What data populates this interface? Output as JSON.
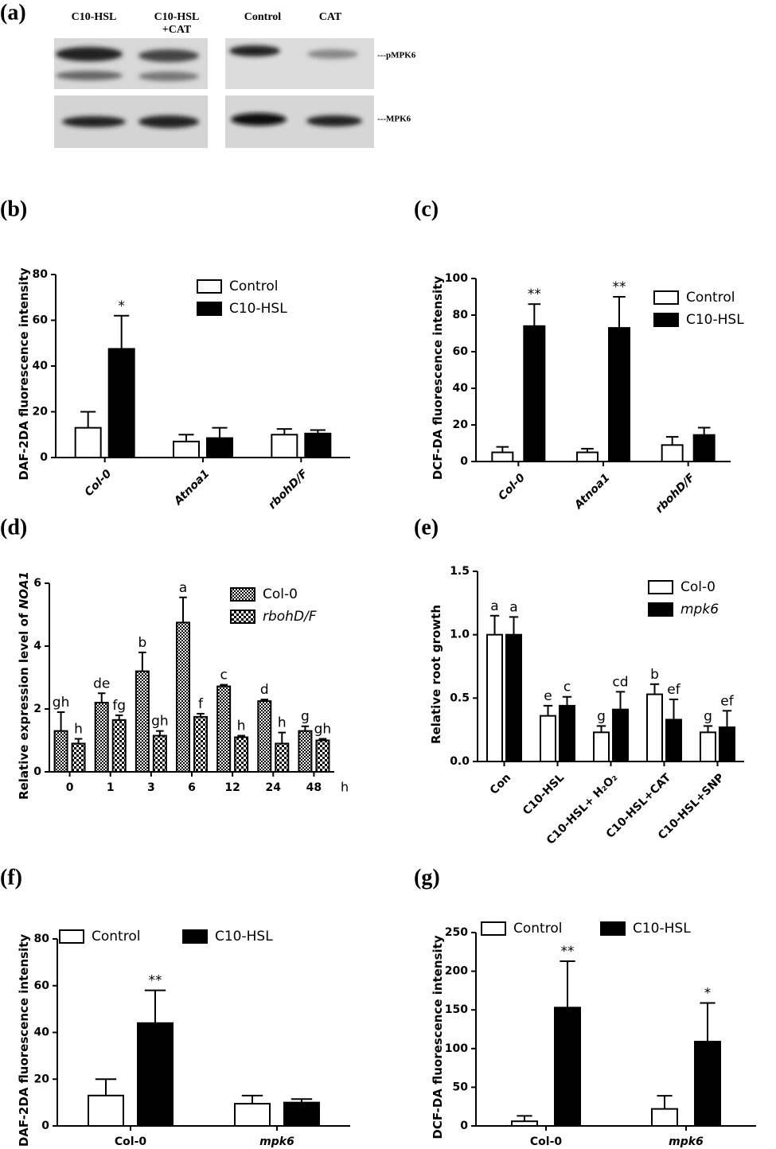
{
  "blot": {
    "label": "(a)",
    "lanes": [
      [
        "C10-HSL"
      ],
      [
        "C10-HSL",
        "+CAT"
      ],
      [
        "Control"
      ],
      [
        "CAT"
      ]
    ],
    "bands": [
      "---pMPK6",
      "---MPK6"
    ]
  },
  "chart_data": [
    {
      "type": "bar",
      "label": "(b)",
      "ylabel": [
        "DAF-2DA fluorescence intensity"
      ],
      "categories": [
        "Col-0",
        "Atnoa1",
        "rbohD/F"
      ],
      "series": [
        {
          "name": "Control",
          "color": "#ffffff",
          "values": [
            13,
            7,
            10
          ],
          "errors": [
            7,
            3,
            2.5
          ],
          "sig": [
            null,
            null,
            null
          ]
        },
        {
          "name": "C10-HSL",
          "color": "#000000",
          "values": [
            47.5,
            8.5,
            10.5
          ],
          "errors": [
            14.5,
            4.5,
            1.5
          ],
          "sig": [
            "*",
            null,
            null
          ]
        }
      ],
      "ylim": [
        0,
        80
      ],
      "yticks": [
        0,
        20,
        40,
        60,
        80
      ],
      "legend": "upper right"
    },
    {
      "type": "bar",
      "label": "(c)",
      "ylabel": [
        "DCF-DA fluorescence intensity"
      ],
      "categories": [
        "Col-0",
        "Atnoa1",
        "rbohD/F"
      ],
      "series": [
        {
          "name": "Control",
          "color": "#ffffff",
          "values": [
            5,
            5,
            9
          ],
          "errors": [
            3,
            2,
            4.5
          ],
          "sig": [
            null,
            null,
            null
          ]
        },
        {
          "name": "C10-HSL",
          "color": "#000000",
          "values": [
            74,
            73,
            14.5
          ],
          "errors": [
            12,
            17,
            4
          ],
          "sig": [
            "**",
            "**",
            null
          ]
        }
      ],
      "ylim": [
        0,
        100
      ],
      "yticks": [
        0,
        20,
        40,
        60,
        80,
        100
      ],
      "legend": "upper right"
    },
    {
      "type": "bar",
      "label": "(d)",
      "ylabel": [
        "Relative expression level of ",
        "NOA1"
      ],
      "categories": [
        "0",
        "1",
        "3",
        "6",
        "12",
        "24",
        "48"
      ],
      "xunit": "h",
      "series": [
        {
          "name": "Col-0",
          "color": "#000000",
          "pattern": "dense",
          "values": [
            1.3,
            2.2,
            3.2,
            4.75,
            2.72,
            2.25,
            1.3
          ],
          "errors": [
            0.6,
            0.3,
            0.6,
            0.8,
            0.05,
            0.05,
            0.15
          ],
          "sig": [
            "gh",
            "de",
            "b",
            "a",
            "c",
            "d",
            "g"
          ]
        },
        {
          "name": "rbohD/F",
          "color": "#000000",
          "pattern": "sparse",
          "values": [
            0.9,
            1.65,
            1.15,
            1.75,
            1.1,
            0.9,
            1.0
          ],
          "errors": [
            0.15,
            0.15,
            0.15,
            0.1,
            0.05,
            0.35,
            0.05
          ],
          "sig": [
            "h",
            "fg",
            "gh",
            "f",
            "h",
            "h",
            "gh"
          ]
        }
      ],
      "ylim": [
        0,
        6
      ],
      "yticks": [
        0,
        2,
        4,
        6
      ],
      "legend": "upper right"
    },
    {
      "type": "bar",
      "label": "(e)",
      "ylabel": [
        "Relative root growth"
      ],
      "categories": [
        "Con",
        "C10-HSL",
        "C10-HSL+ H₂O₂",
        "C10-HSL+CAT",
        "C10-HSL+SNP"
      ],
      "series": [
        {
          "name": "Col-0",
          "color": "#ffffff",
          "values": [
            1.0,
            0.36,
            0.23,
            0.53,
            0.23
          ],
          "errors": [
            0.15,
            0.08,
            0.05,
            0.08,
            0.05
          ],
          "sig": [
            "a",
            "e",
            "g",
            "b",
            "g"
          ]
        },
        {
          "name": "mpk6",
          "color": "#000000",
          "values": [
            1.0,
            0.44,
            0.41,
            0.33,
            0.27
          ],
          "errors": [
            0.14,
            0.07,
            0.14,
            0.16,
            0.13
          ],
          "sig": [
            "a",
            "c",
            "cd",
            "ef",
            "ef"
          ]
        }
      ],
      "ylim": [
        0,
        1.5
      ],
      "yticks": [
        {
          "value": 0,
          "label": "0.0"
        },
        {
          "value": 0.5,
          "label": "0.5"
        },
        {
          "value": 1,
          "label": "1.0"
        },
        {
          "value": 1.5,
          "label": "1.5"
        }
      ],
      "legend": "upper right"
    },
    {
      "type": "bar",
      "label": "(f)",
      "ylabel": [
        "DAF-2DA fluorescence intensity"
      ],
      "categories": [
        "Col-0",
        "mpk6"
      ],
      "series": [
        {
          "name": "Control",
          "color": "#ffffff",
          "values": [
            13,
            9.5
          ],
          "errors": [
            7,
            3.5
          ],
          "sig": [
            null,
            null
          ]
        },
        {
          "name": "C10-HSL",
          "color": "#000000",
          "values": [
            44,
            10
          ],
          "errors": [
            14,
            1.5
          ],
          "sig": [
            "**",
            null
          ]
        }
      ],
      "ylim": [
        0,
        80
      ],
      "yticks": [
        0,
        20,
        40,
        60,
        80
      ],
      "legend": "top"
    },
    {
      "type": "bar",
      "label": "(g)",
      "ylabel": [
        "DCF-DA fluorescence intensity"
      ],
      "categories": [
        "Col-0",
        "mpk6"
      ],
      "series": [
        {
          "name": "Control",
          "color": "#ffffff",
          "values": [
            6,
            22
          ],
          "errors": [
            7,
            17
          ],
          "sig": [
            null,
            null
          ]
        },
        {
          "name": "C10-HSL",
          "color": "#000000",
          "values": [
            153,
            109
          ],
          "errors": [
            60,
            50
          ],
          "sig": [
            "**",
            "*"
          ]
        }
      ],
      "ylim": [
        0,
        250
      ],
      "yticks": [
        0,
        50,
        100,
        150,
        200,
        250
      ],
      "legend": "top"
    }
  ]
}
